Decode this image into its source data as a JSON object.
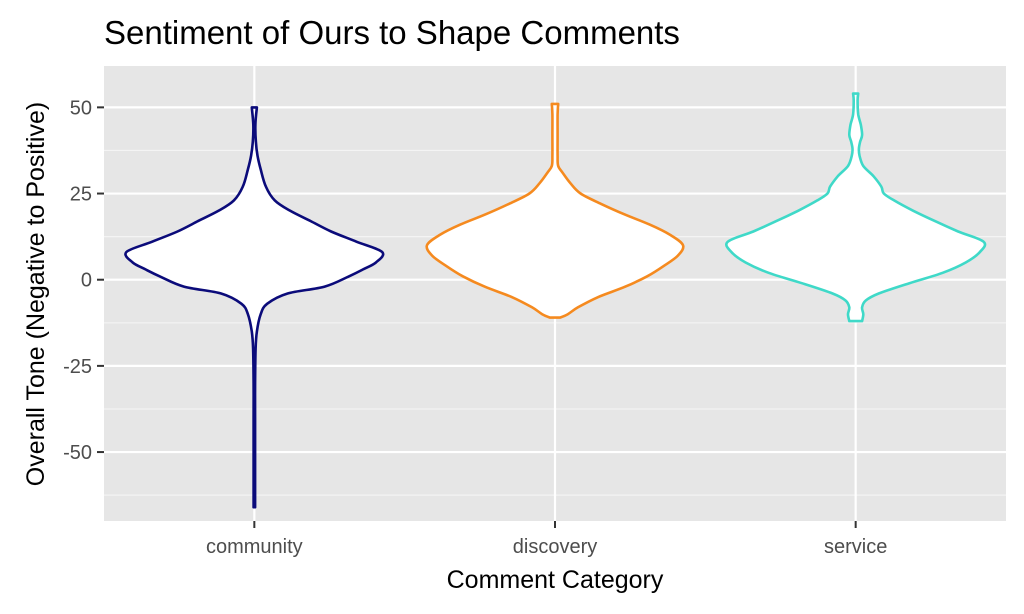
{
  "chart_data": {
    "type": "violin",
    "title": "Sentiment of Ours to Shape Comments",
    "xlabel": "Comment Category",
    "ylabel": "Overall Tone (Negative to Positive)",
    "ylim": [
      -70,
      62
    ],
    "yticks": [
      50,
      25,
      0,
      -25,
      -50
    ],
    "ytick_labels": [
      "50",
      "25",
      "0",
      "-25",
      "-50"
    ],
    "grid": true,
    "categories": [
      "community",
      "discovery",
      "service"
    ],
    "colors": [
      "#0b0b7a",
      "#f58a1f",
      "#3fd9c8"
    ],
    "series": [
      {
        "category": "community",
        "profile": [
          [
            -66,
            0.006
          ],
          [
            -60,
            0.006
          ],
          [
            -50,
            0.006
          ],
          [
            -40,
            0.006
          ],
          [
            -30,
            0.006
          ],
          [
            -20,
            0.01
          ],
          [
            -15,
            0.02
          ],
          [
            -10,
            0.05
          ],
          [
            -7,
            0.1
          ],
          [
            -4,
            0.26
          ],
          [
            -2,
            0.55
          ],
          [
            1,
            0.74
          ],
          [
            3,
            0.85
          ],
          [
            5,
            0.95
          ],
          [
            8,
            1.0
          ],
          [
            11,
            0.8
          ],
          [
            14,
            0.6
          ],
          [
            17,
            0.44
          ],
          [
            20,
            0.28
          ],
          [
            23,
            0.16
          ],
          [
            27,
            0.09
          ],
          [
            32,
            0.05
          ],
          [
            36,
            0.025
          ],
          [
            40,
            0.012
          ],
          [
            45,
            0.008
          ],
          [
            50,
            0.02
          ]
        ]
      },
      {
        "category": "discovery",
        "profile": [
          [
            -11,
            0.04
          ],
          [
            -10,
            0.1
          ],
          [
            -8,
            0.18
          ],
          [
            -5,
            0.34
          ],
          [
            -2,
            0.55
          ],
          [
            1,
            0.72
          ],
          [
            4,
            0.85
          ],
          [
            7,
            0.96
          ],
          [
            10,
            1.0
          ],
          [
            13,
            0.9
          ],
          [
            16,
            0.74
          ],
          [
            19,
            0.54
          ],
          [
            22,
            0.36
          ],
          [
            25,
            0.2
          ],
          [
            28,
            0.12
          ],
          [
            31,
            0.06
          ],
          [
            33,
            0.025
          ],
          [
            36,
            0.02
          ],
          [
            42,
            0.02
          ],
          [
            48,
            0.02
          ],
          [
            51,
            0.025
          ]
        ]
      },
      {
        "category": "service",
        "profile": [
          [
            -12,
            0.05
          ],
          [
            -10,
            0.06
          ],
          [
            -8,
            0.05
          ],
          [
            -6,
            0.08
          ],
          [
            -4,
            0.18
          ],
          [
            -1,
            0.42
          ],
          [
            2,
            0.68
          ],
          [
            5,
            0.86
          ],
          [
            8,
            0.97
          ],
          [
            11,
            1.0
          ],
          [
            14,
            0.8
          ],
          [
            17,
            0.62
          ],
          [
            20,
            0.45
          ],
          [
            23,
            0.3
          ],
          [
            25,
            0.22
          ],
          [
            27,
            0.2
          ],
          [
            30,
            0.14
          ],
          [
            33,
            0.06
          ],
          [
            36,
            0.03
          ],
          [
            38,
            0.025
          ],
          [
            40,
            0.035
          ],
          [
            42,
            0.05
          ],
          [
            45,
            0.04
          ],
          [
            48,
            0.02
          ],
          [
            52,
            0.015
          ],
          [
            54,
            0.02
          ]
        ]
      }
    ]
  }
}
